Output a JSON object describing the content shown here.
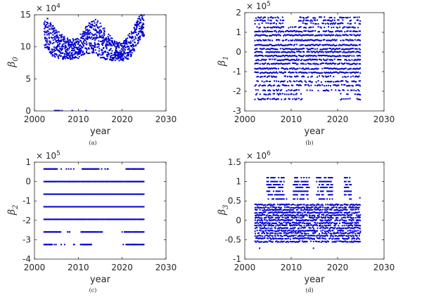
{
  "chart_data": [
    {
      "type": "scatter",
      "panel_caption": "(a)",
      "xlabel": "year",
      "ylabel_main": "β",
      "ylabel_sub": "0",
      "exponent_base": "× 10",
      "exponent_power": "4",
      "xlim": [
        2000,
        2030
      ],
      "ylim": [
        0,
        15
      ],
      "xticks": [
        "2000",
        "2010",
        "2020",
        "2030"
      ],
      "yticks": [
        "0",
        "5",
        "10",
        "15"
      ],
      "ytick_values": [
        0,
        5,
        10,
        15
      ],
      "year_start": 2002.2,
      "year_end": 2025.0,
      "envelope_years": [
        2002.2,
        2004,
        2006,
        2008,
        2010,
        2012,
        2014,
        2016,
        2018,
        2020,
        2022,
        2024,
        2025
      ],
      "envelope_low": [
        10.0,
        8.6,
        8.0,
        8.0,
        8.2,
        9.0,
        8.6,
        8.0,
        7.8,
        7.8,
        8.2,
        11.0,
        11.5
      ],
      "envelope_high": [
        15.2,
        13.5,
        12.0,
        11.2,
        11.5,
        13.5,
        14.5,
        13.0,
        11.0,
        10.5,
        12.5,
        15.0,
        15.4
      ],
      "zero_points": [
        2004.6,
        2004.9,
        2005.2,
        2005.5,
        2005.8,
        2006.3,
        2008.6,
        2011.8
      ]
    },
    {
      "type": "scatter",
      "panel_caption": "(b)",
      "xlabel": "year",
      "ylabel_main": "β",
      "ylabel_sub": "1",
      "exponent_base": "× 10",
      "exponent_power": "5",
      "xlim": [
        2000,
        2030
      ],
      "ylim": [
        -3,
        2
      ],
      "xticks": [
        "2000",
        "2010",
        "2020",
        "2030"
      ],
      "yticks": [
        "-3",
        "-2",
        "-1",
        "0",
        "1",
        "2"
      ],
      "ytick_values": [
        -3,
        -2,
        -1,
        0,
        1,
        2
      ],
      "year_start": 2002.2,
      "year_end": 2025.0,
      "levels": [
        1.75,
        1.6,
        1.45,
        1.25,
        1.05,
        0.85,
        0.6,
        0.35,
        0.15,
        0.0,
        -0.2,
        -0.4,
        -0.6,
        -0.85,
        -1.05,
        -1.25,
        -1.5,
        -1.7,
        -1.95,
        -2.15,
        -2.4
      ],
      "gap_years_top": [
        2008.5,
        2011.5
      ],
      "gap_years_bottom": [
        2012.5,
        2020.5
      ]
    },
    {
      "type": "scatter",
      "panel_caption": "(c)",
      "xlabel": "year",
      "ylabel_main": "β",
      "ylabel_sub": "2",
      "exponent_base": "× 10",
      "exponent_power": "5",
      "xlim": [
        2000,
        2030
      ],
      "ylim": [
        -4,
        1
      ],
      "xticks": [
        "2000",
        "2010",
        "2020",
        "2030"
      ],
      "yticks": [
        "-4",
        "-3",
        "-2",
        "-1",
        "0",
        "1"
      ],
      "ytick_values": [
        -4,
        -3,
        -2,
        -1,
        0,
        1
      ],
      "year_start": 2002.2,
      "year_end": 2025.0,
      "levels": [
        0.65,
        0.0,
        -0.65,
        -1.3,
        -1.95,
        -2.6,
        -3.25
      ],
      "level_gaps": {
        "0.65": [
          [
            2005.0,
            2010.8
          ],
          [
            2014.8,
            2020.8
          ]
        ],
        "0.0": [
          [
            2008.0,
            2011.0
          ],
          [
            2015.0,
            2020.5
          ]
        ],
        "-2.6": [
          [
            2006.0,
            2010.5
          ],
          [
            2015.5,
            2020.5
          ]
        ],
        "-3.25": [
          [
            2004.0,
            2010.5
          ],
          [
            2013.0,
            2020.8
          ]
        ]
      }
    },
    {
      "type": "scatter",
      "panel_caption": "(d)",
      "xlabel": "year",
      "ylabel_main": "β",
      "ylabel_sub": "3",
      "exponent_base": "× 10",
      "exponent_power": "6",
      "xlim": [
        2000,
        2030
      ],
      "ylim": [
        -1,
        1.5
      ],
      "xticks": [
        "2000",
        "2010",
        "2020",
        "2030"
      ],
      "yticks": [
        "-1",
        "-0.5",
        "0",
        "0.5",
        "1",
        "1.5"
      ],
      "ytick_values": [
        -1,
        -0.5,
        0,
        0.5,
        1,
        1.5
      ],
      "year_start": 2002.2,
      "year_end": 2025.0,
      "dense_levels": [
        0.4,
        0.33,
        0.27,
        0.2,
        0.13,
        0.07,
        0.0,
        -0.07,
        -0.13,
        -0.2,
        -0.27,
        -0.33,
        -0.4,
        -0.47,
        -0.55
      ],
      "sparse_levels": [
        1.1,
        1.0,
        0.92,
        0.85,
        0.75,
        0.66,
        0.55
      ],
      "sparse_ranges": [
        [
          2004.8,
          2008.5
        ],
        [
          2010.5,
          2014.0
        ],
        [
          2015.5,
          2019.0
        ],
        [
          2021.5,
          2023.0
        ]
      ],
      "outliers": [
        [
          2003.2,
          -0.72
        ],
        [
          2014.8,
          -0.72
        ],
        [
          2009.0,
          0.55
        ],
        [
          2024.8,
          0.58
        ]
      ]
    }
  ]
}
